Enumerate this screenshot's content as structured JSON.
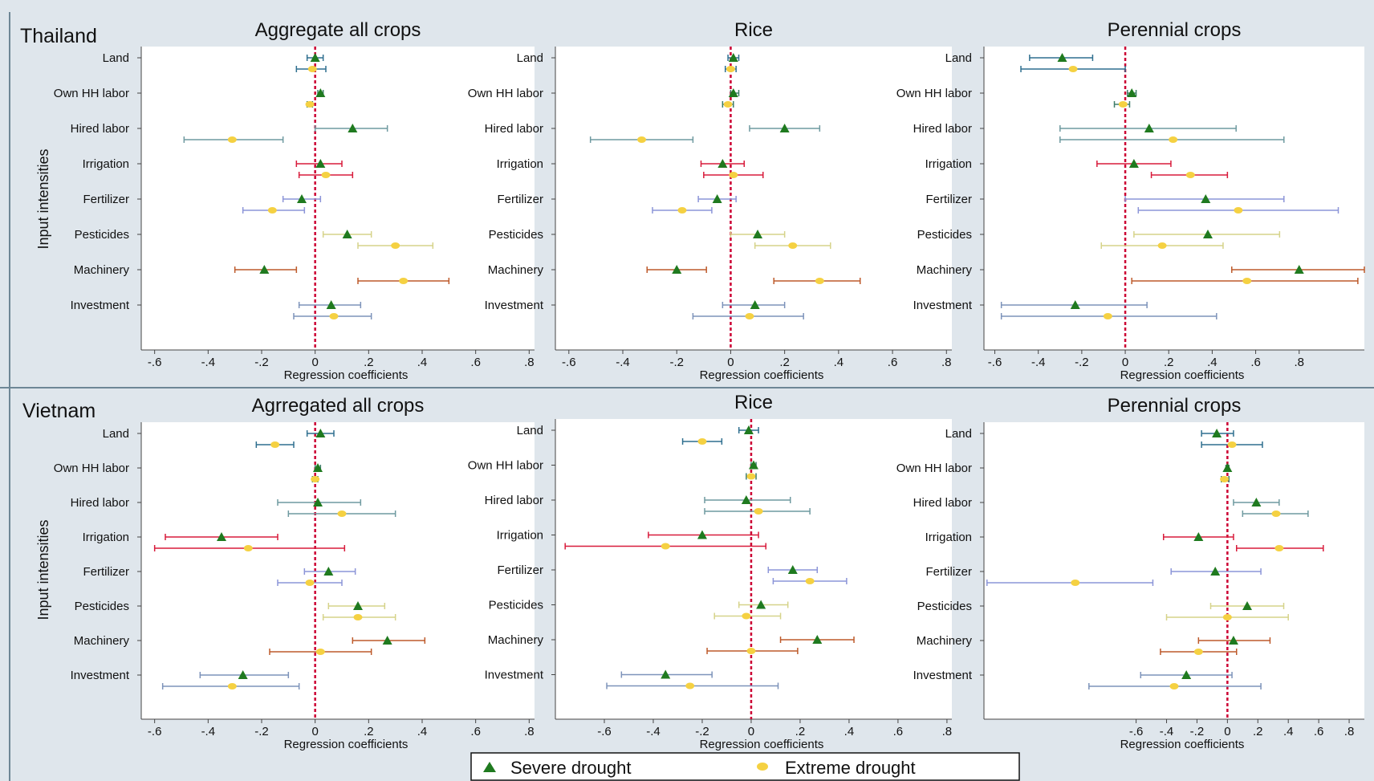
{
  "figure": {
    "legend": {
      "severe_label": "Severe drought",
      "extreme_label": "Extreme drought",
      "severe_color": "#1f7a1f",
      "extreme_color": "#f5d142"
    },
    "input_axis_label": "Input intensities",
    "x_axis_label": "Regression coefficients",
    "country_titles": [
      "Thailand",
      "Vietnam"
    ],
    "colors": {
      "background": "#dfe6ec",
      "panel": "#ffffff",
      "zero_line": "#cc0033",
      "Land": "#2f6f8f",
      "Own HH labor": "#3e7d6a",
      "Hired labor": "#6f9aa0",
      "Irrigation": "#d81b3b",
      "Fertilizer": "#8c95d8",
      "Pesticides": "#d6d38a",
      "Machinery": "#bd5a2b",
      "Investment": "#7d93ba"
    }
  },
  "chart_data": [
    {
      "type": "coefficient_plot",
      "country": "Thailand",
      "title": "Aggregate all crops",
      "categories": [
        "Land",
        "Own HH labor",
        "Hired labor",
        "Irrigation",
        "Fertilizer",
        "Pesticides",
        "Machinery",
        "Investment"
      ],
      "xlabel": "Regression coefficients",
      "ylabel": "Input intensities",
      "xlim": [
        -0.65,
        0.82
      ],
      "xticks": [
        -0.6,
        -0.4,
        -0.2,
        0,
        0.2,
        0.4,
        0.6,
        0.8
      ],
      "xtick_labels": [
        "-.6",
        "-.4",
        "-.2",
        "0",
        ".2",
        ".4",
        ".6",
        ".8"
      ],
      "series": [
        {
          "name": "Severe drought",
          "estimates": [
            0.0,
            0.02,
            0.14,
            0.02,
            -0.05,
            0.12,
            -0.19,
            0.06
          ],
          "lower": [
            -0.03,
            0.01,
            0.0,
            -0.07,
            -0.12,
            0.03,
            -0.3,
            -0.06
          ],
          "upper": [
            0.03,
            0.03,
            0.27,
            0.1,
            0.02,
            0.21,
            -0.07,
            0.17
          ]
        },
        {
          "name": "Extreme drought",
          "estimates": [
            -0.01,
            -0.02,
            -0.31,
            0.04,
            -0.16,
            0.3,
            0.33,
            0.07
          ],
          "lower": [
            -0.07,
            -0.03,
            -0.49,
            -0.06,
            -0.27,
            0.16,
            0.16,
            -0.08
          ],
          "upper": [
            0.04,
            -0.01,
            -0.12,
            0.14,
            -0.04,
            0.44,
            0.5,
            0.21
          ]
        }
      ]
    },
    {
      "type": "coefficient_plot",
      "country": "Thailand",
      "title": "Rice",
      "categories": [
        "Land",
        "Own HH labor",
        "Hired labor",
        "Irrigation",
        "Fertilizer",
        "Pesticides",
        "Machinery",
        "Investment"
      ],
      "xlabel": "Regression coefficients",
      "xlim": [
        -0.65,
        0.82
      ],
      "xticks": [
        -0.6,
        -0.4,
        -0.2,
        0,
        0.2,
        0.4,
        0.6,
        0.8
      ],
      "xtick_labels": [
        "-.6",
        "-.4",
        "-.2",
        "0",
        ".2",
        ".4",
        ".6",
        ".8"
      ],
      "series": [
        {
          "name": "Severe drought",
          "estimates": [
            0.01,
            0.01,
            0.2,
            -0.03,
            -0.05,
            0.1,
            -0.2,
            0.09
          ],
          "lower": [
            -0.01,
            0.0,
            0.07,
            -0.11,
            -0.12,
            0.0,
            -0.31,
            -0.03
          ],
          "upper": [
            0.03,
            0.03,
            0.33,
            0.05,
            0.02,
            0.2,
            -0.09,
            0.2
          ]
        },
        {
          "name": "Extreme drought",
          "estimates": [
            0.0,
            -0.01,
            -0.33,
            0.01,
            -0.18,
            0.23,
            0.33,
            0.07
          ],
          "lower": [
            -0.02,
            -0.03,
            -0.52,
            -0.1,
            -0.29,
            0.09,
            0.16,
            -0.14
          ],
          "upper": [
            0.02,
            0.01,
            -0.14,
            0.12,
            -0.07,
            0.37,
            0.48,
            0.27
          ]
        }
      ]
    },
    {
      "type": "coefficient_plot",
      "country": "Thailand",
      "title": "Perennial crops",
      "categories": [
        "Land",
        "Own HH labor",
        "Hired labor",
        "Irrigation",
        "Fertilizer",
        "Pesticides",
        "Machinery",
        "Investment"
      ],
      "xlabel": "Regression coefficients",
      "xlim": [
        -0.65,
        1.1
      ],
      "xticks": [
        -0.6,
        -0.4,
        -0.2,
        0,
        0.2,
        0.4,
        0.6,
        0.8
      ],
      "xtick_labels": [
        "-.6",
        "-.4",
        "-.2",
        "0",
        ".2",
        ".4",
        ".6",
        ".8"
      ],
      "series": [
        {
          "name": "Severe drought",
          "estimates": [
            -0.29,
            0.03,
            0.11,
            0.04,
            0.37,
            0.38,
            0.8,
            -0.23
          ],
          "lower": [
            -0.44,
            0.01,
            -0.3,
            -0.13,
            0.0,
            0.04,
            0.49,
            -0.57
          ],
          "upper": [
            -0.15,
            0.05,
            0.51,
            0.21,
            0.73,
            0.71,
            1.1,
            0.1
          ]
        },
        {
          "name": "Extreme drought",
          "estimates": [
            -0.24,
            -0.01,
            0.22,
            0.3,
            0.52,
            0.17,
            0.56,
            -0.08
          ],
          "lower": [
            -0.48,
            -0.05,
            -0.3,
            0.12,
            0.06,
            -0.11,
            0.03,
            -0.57
          ],
          "upper": [
            0.0,
            0.02,
            0.73,
            0.47,
            0.98,
            0.45,
            1.07,
            0.42
          ]
        }
      ]
    },
    {
      "type": "coefficient_plot",
      "country": "Vietnam",
      "title": "Agrregated all crops",
      "categories": [
        "Land",
        "Own HH labor",
        "Hired labor",
        "Irrigation",
        "Fertilizer",
        "Pesticides",
        "Machinery",
        "Investment"
      ],
      "xlabel": "Regression coefficients",
      "ylabel": "Input intensities",
      "xlim": [
        -0.65,
        0.82
      ],
      "xticks": [
        -0.6,
        -0.4,
        -0.2,
        0,
        0.2,
        0.4,
        0.6,
        0.8
      ],
      "xtick_labels": [
        "-.6",
        "-.4",
        "-.2",
        "0",
        ".2",
        ".4",
        ".6",
        ".8"
      ],
      "series": [
        {
          "name": "Severe drought",
          "estimates": [
            0.02,
            0.01,
            0.01,
            -0.35,
            0.05,
            0.16,
            0.27,
            -0.27
          ],
          "lower": [
            -0.03,
            0.0,
            -0.14,
            -0.56,
            -0.04,
            0.05,
            0.14,
            -0.43
          ],
          "upper": [
            0.07,
            0.02,
            0.17,
            -0.14,
            0.15,
            0.26,
            0.41,
            -0.1
          ]
        },
        {
          "name": "Extreme drought",
          "estimates": [
            -0.15,
            0.0,
            0.1,
            -0.25,
            -0.02,
            0.16,
            0.02,
            -0.31
          ],
          "lower": [
            -0.22,
            -0.01,
            -0.1,
            -0.6,
            -0.14,
            0.03,
            -0.17,
            -0.57
          ],
          "upper": [
            -0.08,
            0.01,
            0.3,
            0.11,
            0.1,
            0.3,
            0.21,
            -0.06
          ]
        }
      ]
    },
    {
      "type": "coefficient_plot",
      "country": "Vietnam",
      "title": "Rice",
      "categories": [
        "Land",
        "Own HH labor",
        "Hired labor",
        "Irrigation",
        "Fertilizer",
        "Pesticides",
        "Machinery",
        "Investment"
      ],
      "xlabel": "Regression coefficients",
      "xlim": [
        -0.8,
        0.82
      ],
      "xticks": [
        -0.6,
        -0.4,
        -0.2,
        0,
        0.2,
        0.4,
        0.6,
        0.8
      ],
      "xtick_labels": [
        "-.6",
        "-.4",
        "-.2",
        "0",
        ".2",
        ".4",
        ".6",
        ".8"
      ],
      "series": [
        {
          "name": "Severe drought",
          "estimates": [
            -0.01,
            0.01,
            -0.02,
            -0.2,
            0.17,
            0.04,
            0.27,
            -0.35
          ],
          "lower": [
            -0.05,
            0.0,
            -0.19,
            -0.42,
            0.07,
            -0.05,
            0.12,
            -0.53
          ],
          "upper": [
            0.03,
            0.02,
            0.16,
            0.03,
            0.27,
            0.15,
            0.42,
            -0.16
          ]
        },
        {
          "name": "Extreme drought",
          "estimates": [
            -0.2,
            0.0,
            0.03,
            -0.35,
            0.24,
            -0.02,
            0.0,
            -0.25
          ],
          "lower": [
            -0.28,
            -0.02,
            -0.19,
            -0.76,
            0.09,
            -0.15,
            -0.18,
            -0.59
          ],
          "upper": [
            -0.12,
            0.02,
            0.24,
            0.06,
            0.39,
            0.12,
            0.19,
            0.11
          ]
        }
      ]
    },
    {
      "type": "coefficient_plot",
      "country": "Vietnam",
      "title": "Perennial crops",
      "categories": [
        "Land",
        "Own HH labor",
        "Hired labor",
        "Irrigation",
        "Fertilizer",
        "Pesticides",
        "Machinery",
        "Investment"
      ],
      "xlabel": "Regression coefficients",
      "xlim": [
        -1.6,
        0.9
      ],
      "xticks": [
        -0.6,
        -0.4,
        -0.2,
        0,
        0.2,
        0.4,
        0.6,
        0.8
      ],
      "xtick_labels": [
        "-.6",
        "-.4",
        "-.2",
        "0",
        ".2",
        ".4",
        ".6",
        ".8"
      ],
      "series": [
        {
          "name": "Severe drought",
          "estimates": [
            -0.07,
            0.0,
            0.19,
            -0.19,
            -0.08,
            0.13,
            0.04,
            -0.27
          ],
          "lower": [
            -0.17,
            -0.01,
            0.04,
            -0.42,
            -0.37,
            -0.11,
            -0.19,
            -0.57
          ],
          "upper": [
            0.04,
            0.01,
            0.34,
            0.04,
            0.22,
            0.37,
            0.28,
            0.03
          ]
        },
        {
          "name": "Extreme drought",
          "estimates": [
            0.03,
            -0.02,
            0.32,
            0.34,
            -1.0,
            0.0,
            -0.19,
            -0.35
          ],
          "lower": [
            -0.17,
            -0.04,
            0.1,
            0.06,
            -1.58,
            -0.4,
            -0.44,
            -0.91
          ],
          "upper": [
            0.23,
            0.01,
            0.53,
            0.63,
            -0.49,
            0.4,
            0.06,
            0.22
          ]
        }
      ]
    }
  ]
}
